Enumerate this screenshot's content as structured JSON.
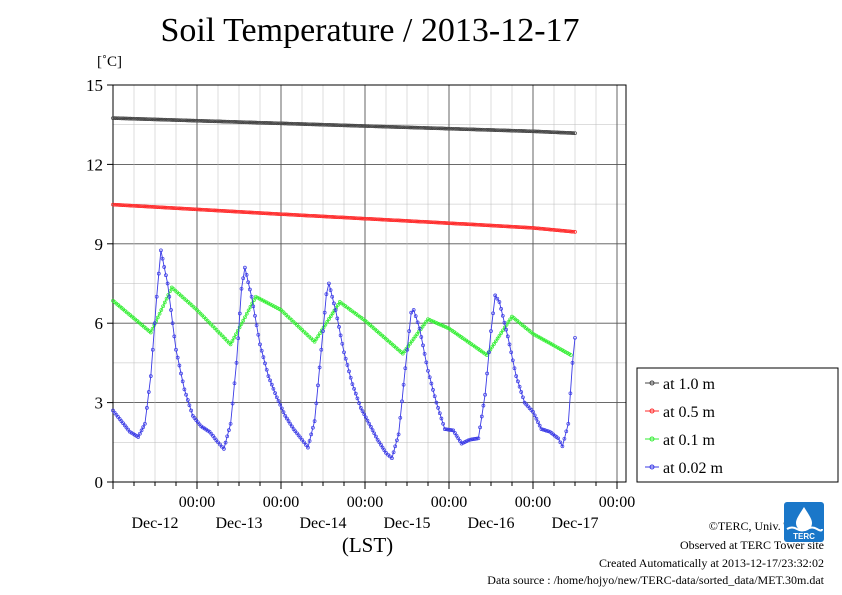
{
  "title": "Soil Temperature / 2013-12-17",
  "unit_label": "[˚C]",
  "footer": {
    "copyright": "©TERC, Univ. Tsukuba",
    "observed": "Observed at TERC Tower site",
    "created": "Created Automatically at 2013-12-17/23:32:02",
    "source": "Data source : /home/hojyo/new/TERC-data/sorted_data/MET.30m.dat"
  },
  "logo": {
    "text": "TERC",
    "color": "#1a77c9"
  },
  "chart_data": {
    "type": "line",
    "title": "Soil Temperature / 2013-12-17",
    "ylabel": "[˚C]",
    "xlabel": "(LST)",
    "ylim": [
      0,
      15
    ],
    "yticks": [
      "0",
      "3",
      "6",
      "9",
      "12",
      "15"
    ],
    "xlim": [
      0,
      6
    ],
    "x_unit": "days since 2013-12-11 00:00 (LST)",
    "xticks": [
      {
        "x": 1,
        "time": "00:00",
        "date": "Dec-12"
      },
      {
        "x": 2,
        "time": "00:00",
        "date": "Dec-13"
      },
      {
        "x": 3,
        "time": "00:00",
        "date": "Dec-14"
      },
      {
        "x": 4,
        "time": "00:00",
        "date": "Dec-15"
      },
      {
        "x": 5,
        "time": "00:00",
        "date": "Dec-16"
      },
      {
        "x": 6,
        "time": "00:00",
        "date": "Dec-17"
      }
    ],
    "grid": true,
    "legend_position": "right",
    "series": [
      {
        "name": "at 1.0 m",
        "color": "#444444",
        "points": [
          [
            0.0,
            13.75
          ],
          [
            1.0,
            13.65
          ],
          [
            2.0,
            13.55
          ],
          [
            3.0,
            13.45
          ],
          [
            4.0,
            13.35
          ],
          [
            5.0,
            13.25
          ],
          [
            5.5,
            13.18
          ]
        ]
      },
      {
        "name": "at 0.5 m",
        "color": "#ff2a2a",
        "points": [
          [
            0.0,
            10.48
          ],
          [
            1.0,
            10.3
          ],
          [
            2.0,
            10.12
          ],
          [
            3.0,
            9.95
          ],
          [
            4.0,
            9.78
          ],
          [
            5.0,
            9.6
          ],
          [
            5.5,
            9.45
          ]
        ]
      },
      {
        "name": "at 0.1 m",
        "color": "#33ee33",
        "points": [
          [
            0.0,
            6.85
          ],
          [
            0.45,
            5.65
          ],
          [
            0.7,
            7.35
          ],
          [
            1.0,
            6.5
          ],
          [
            1.4,
            5.2
          ],
          [
            1.7,
            7.0
          ],
          [
            2.0,
            6.5
          ],
          [
            2.4,
            5.3
          ],
          [
            2.7,
            6.8
          ],
          [
            3.0,
            6.1
          ],
          [
            3.45,
            4.85
          ],
          [
            3.75,
            6.15
          ],
          [
            4.0,
            5.8
          ],
          [
            4.45,
            4.8
          ],
          [
            4.75,
            6.25
          ],
          [
            5.0,
            5.6
          ],
          [
            5.45,
            4.8
          ]
        ]
      },
      {
        "name": "at 0.02 m",
        "color": "#3a3ae6",
        "points": [
          [
            0.0,
            2.7
          ],
          [
            0.1,
            2.3
          ],
          [
            0.2,
            1.9
          ],
          [
            0.3,
            1.7
          ],
          [
            0.38,
            2.2
          ],
          [
            0.45,
            4.0
          ],
          [
            0.52,
            7.0
          ],
          [
            0.57,
            8.75
          ],
          [
            0.65,
            7.5
          ],
          [
            0.75,
            5.0
          ],
          [
            0.85,
            3.5
          ],
          [
            0.95,
            2.5
          ],
          [
            1.05,
            2.1
          ],
          [
            1.15,
            1.9
          ],
          [
            1.25,
            1.5
          ],
          [
            1.32,
            1.25
          ],
          [
            1.4,
            2.2
          ],
          [
            1.47,
            4.5
          ],
          [
            1.53,
            7.3
          ],
          [
            1.57,
            8.1
          ],
          [
            1.65,
            7.0
          ],
          [
            1.75,
            5.2
          ],
          [
            1.85,
            4.0
          ],
          [
            1.95,
            3.2
          ],
          [
            2.05,
            2.5
          ],
          [
            2.15,
            2.0
          ],
          [
            2.25,
            1.6
          ],
          [
            2.32,
            1.3
          ],
          [
            2.4,
            2.3
          ],
          [
            2.48,
            5.0
          ],
          [
            2.54,
            7.1
          ],
          [
            2.57,
            7.5
          ],
          [
            2.65,
            6.5
          ],
          [
            2.75,
            4.9
          ],
          [
            2.85,
            3.7
          ],
          [
            2.95,
            2.8
          ],
          [
            3.05,
            2.2
          ],
          [
            3.15,
            1.6
          ],
          [
            3.25,
            1.1
          ],
          [
            3.32,
            0.9
          ],
          [
            3.4,
            1.8
          ],
          [
            3.48,
            4.3
          ],
          [
            3.55,
            6.4
          ],
          [
            3.58,
            6.5
          ],
          [
            3.65,
            5.8
          ],
          [
            3.75,
            4.2
          ],
          [
            3.85,
            3.0
          ],
          [
            3.95,
            2.0
          ],
          [
            4.05,
            1.95
          ],
          [
            4.15,
            1.45
          ],
          [
            4.25,
            1.6
          ],
          [
            4.35,
            1.65
          ],
          [
            4.43,
            3.3
          ],
          [
            4.5,
            5.7
          ],
          [
            4.55,
            7.05
          ],
          [
            4.6,
            6.8
          ],
          [
            4.7,
            5.5
          ],
          [
            4.8,
            4.0
          ],
          [
            4.9,
            3.0
          ],
          [
            5.0,
            2.65
          ],
          [
            5.1,
            2.0
          ],
          [
            5.2,
            1.9
          ],
          [
            5.3,
            1.65
          ],
          [
            5.35,
            1.35
          ],
          [
            5.42,
            2.2
          ],
          [
            5.47,
            4.5
          ],
          [
            5.5,
            5.45
          ]
        ]
      }
    ]
  }
}
